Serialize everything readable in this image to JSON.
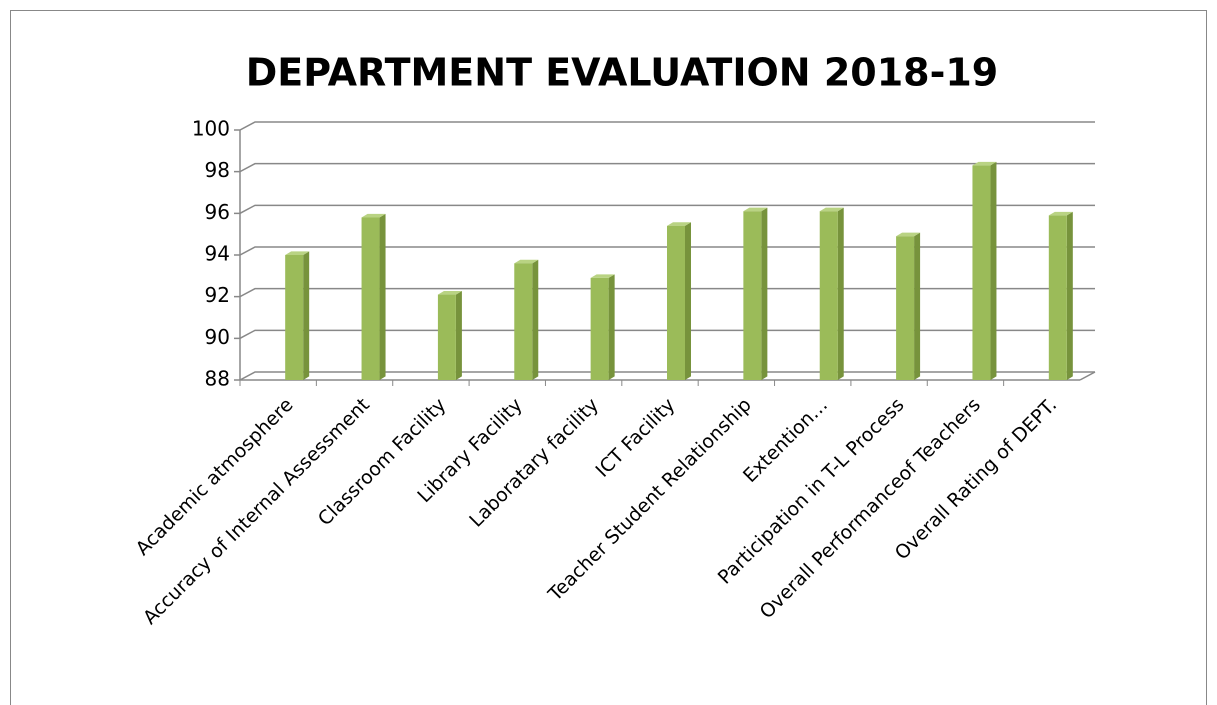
{
  "chart_data": {
    "type": "bar",
    "title": "DEPARTMENT EVALUATION 2018-19",
    "categories": [
      "Academic atmosphere",
      "Accuracy of Internal Assessment",
      "Classroom Facility",
      "Library Facility",
      "Laboratary facility",
      "ICT Facility",
      "Teacher Student Relationship",
      "Extention…",
      "Participation in T-L Process",
      "Overall Performanceof Teachers",
      "Overall Rating of DEPT."
    ],
    "values": [
      94.0,
      95.8,
      92.1,
      93.6,
      92.9,
      95.4,
      96.1,
      96.1,
      94.9,
      98.3,
      95.9
    ],
    "color": "#9bbb59",
    "ylim": [
      88,
      100
    ],
    "yticks": [
      88,
      90,
      92,
      94,
      96,
      98,
      100
    ],
    "grid": true
  }
}
